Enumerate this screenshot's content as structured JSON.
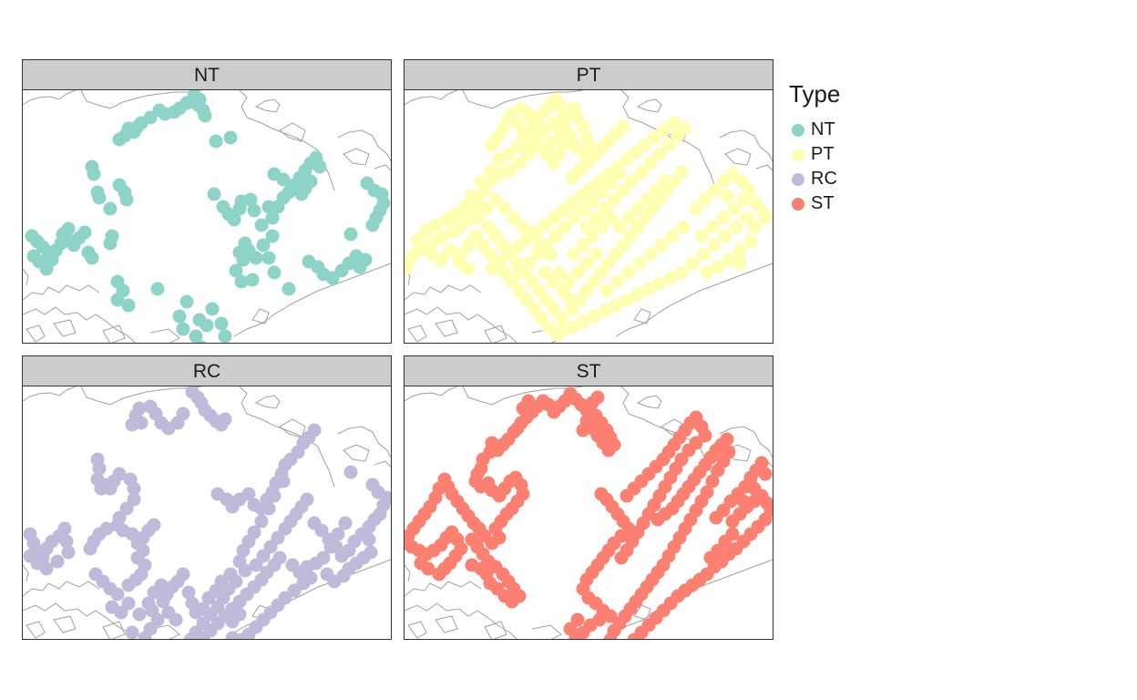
{
  "legend": {
    "title": "Type",
    "items": [
      {
        "label": "NT",
        "color": "#8dd3c7"
      },
      {
        "label": "PT",
        "color": "#ffffb3"
      },
      {
        "label": "RC",
        "color": "#bebada"
      },
      {
        "label": "ST",
        "color": "#fb8072"
      }
    ]
  },
  "panels": [
    {
      "title": "NT",
      "color": "#8dd3c7"
    },
    {
      "title": "PT",
      "color": "#ffffb3"
    },
    {
      "title": "RC",
      "color": "#bebada"
    },
    {
      "title": "ST",
      "color": "#fb8072"
    }
  ],
  "map": {
    "point_style": "filled-circle",
    "coastline_color": "#a0a0a0"
  }
}
